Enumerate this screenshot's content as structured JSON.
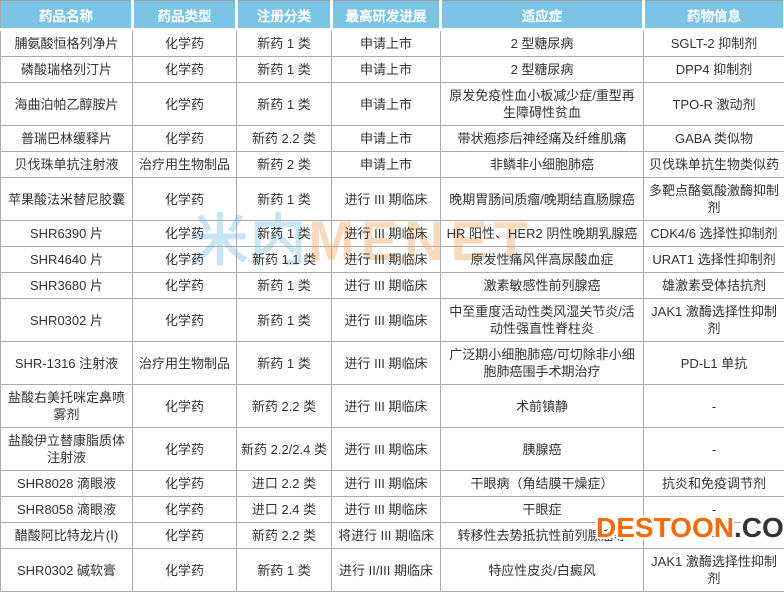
{
  "colors": {
    "header_background": "#7CC4E6",
    "header_text": "#FFFFFF",
    "cell_border": "#ABABAB",
    "body_text": "#333333",
    "watermark_menet_cn": "#7DC4E6",
    "watermark_menet_en": "#F39E54",
    "watermark_destoon_name": "#F26C0D",
    "watermark_destoon_tld": "#333333"
  },
  "watermarks": {
    "menet_cn": "米内",
    "menet_en": "MENET",
    "destoon_name": "DESTOON",
    "destoon_tld": ".COM"
  },
  "table": {
    "headers": [
      "药品名称",
      "药品类型",
      "注册分类",
      "最高研发进展",
      "适应症",
      "药物信息"
    ],
    "rows": [
      [
        "脯氨酸恒格列净片",
        "化学药",
        "新药 1 类",
        "申请上市",
        "2 型糖尿病",
        "SGLT-2 抑制剂"
      ],
      [
        "磷酸瑞格列汀片",
        "化学药",
        "新药 1 类",
        "申请上市",
        "2 型糖尿病",
        "DPP4 抑制剂"
      ],
      [
        "海曲泊帕乙醇胺片",
        "化学药",
        "新药 1 类",
        "申请上市",
        "原发免疫性血小板减少症/重型再生障碍性贫血",
        "TPO-R 激动剂"
      ],
      [
        "普瑞巴林缓释片",
        "化学药",
        "新药 2.2 类",
        "申请上市",
        "带状疱疹后神经痛及纤维肌痛",
        "GABA 类似物"
      ],
      [
        "贝伐珠单抗注射液",
        "治疗用生物制品",
        "新药 2 类",
        "申请上市",
        "非鳞非小细胞肺癌",
        "贝伐珠单抗生物类似药"
      ],
      [
        "苹果酸法米替尼胶囊",
        "化学药",
        "新药 1 类",
        "进行 III 期临床",
        "晚期胃肠间质瘤/晚期结直肠腺癌",
        "多靶点酪氨酸激酶抑制剂"
      ],
      [
        "SHR6390 片",
        "化学药",
        "新药 1 类",
        "进行 III 期临床",
        "HR 阳性、HER2 阴性晚期乳腺癌",
        "CDK4/6 选择性抑制剂"
      ],
      [
        "SHR4640 片",
        "化学药",
        "新药 1.1 类",
        "进行 III 期临床",
        "原发性痛风伴高尿酸血症",
        "URAT1 选择性抑制剂"
      ],
      [
        "SHR3680 片",
        "化学药",
        "新药 1 类",
        "进行 III 期临床",
        "激素敏感性前列腺癌",
        "雄激素受体拮抗剂"
      ],
      [
        "SHR0302 片",
        "化学药",
        "新药 1 类",
        "进行 III 期临床",
        "中至重度活动性类风湿关节炎/活动性强直性脊柱炎",
        "JAK1 激酶选择性抑制剂"
      ],
      [
        "SHR-1316 注射液",
        "治疗用生物制品",
        "新药 1 类",
        "进行 III 期临床",
        "广泛期小细胞肺癌/可切除非小细胞肺癌围手术期治疗",
        "PD-L1 单抗"
      ],
      [
        "盐酸右美托咪定鼻喷雾剂",
        "化学药",
        "新药 2.2 类",
        "进行 III 期临床",
        "术前镇静",
        "-"
      ],
      [
        "盐酸伊立替康脂质体注射液",
        "化学药",
        "新药 2.2/2.4 类",
        "进行 III 期临床",
        "胰腺癌",
        "-"
      ],
      [
        "SHR8028 滴眼液",
        "化学药",
        "进口 2.2 类",
        "进行 III 期临床",
        "干眼病（角结膜干燥症）",
        "抗炎和免疫调节剂"
      ],
      [
        "SHR8058 滴眼液",
        "化学药",
        "进口 2.4 类",
        "进行 III 期临床",
        "干眼症",
        "-"
      ],
      [
        "醋酸阿比特龙片(Ⅰ)",
        "化学药",
        "新药 2.2 类",
        "将进行 III 期临床",
        "转移性去势抵抗性前列腺癌等",
        "-"
      ],
      [
        "SHR0302 碱软膏",
        "化学药",
        "新药 1 类",
        "进行 II/III 期临床",
        "特应性皮炎/白癜风",
        "JAK1 激酶选择性抑制剂"
      ]
    ]
  }
}
